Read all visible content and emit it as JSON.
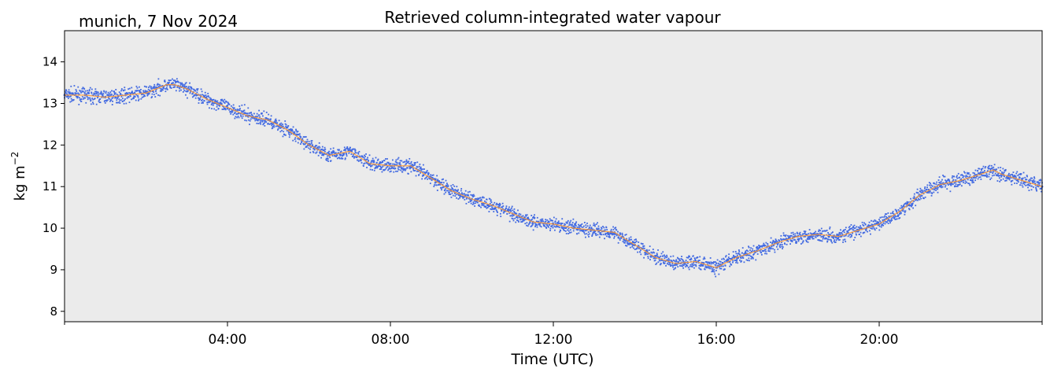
{
  "header": {
    "location_date": "munich, 7 Nov 2024",
    "title": "Retrieved column-integrated water vapour"
  },
  "chart_data": {
    "type": "scatter",
    "title": "Retrieved column-integrated water vapour",
    "xlabel": "Time (UTC)",
    "ylabel_main": "kg m",
    "ylabel_sup": "−2",
    "x_unit": "hours UTC",
    "xlim": [
      0,
      24
    ],
    "ylim": [
      7.75,
      14.75
    ],
    "x_ticks": [
      {
        "value": 4,
        "label": "04:00"
      },
      {
        "value": 8,
        "label": "08:00"
      },
      {
        "value": 12,
        "label": "12:00"
      },
      {
        "value": 16,
        "label": "16:00"
      },
      {
        "value": 20,
        "label": "20:00"
      }
    ],
    "x_minor_ticks": [
      0,
      24
    ],
    "y_ticks": [
      {
        "value": 8,
        "label": "8"
      },
      {
        "value": 9,
        "label": "9"
      },
      {
        "value": 10,
        "label": "10"
      },
      {
        "value": 11,
        "label": "11"
      },
      {
        "value": 12,
        "label": "12"
      },
      {
        "value": 13,
        "label": "13"
      },
      {
        "value": 14,
        "label": "14"
      }
    ],
    "grid": false,
    "background": "#ebebeb",
    "series": [
      {
        "kind": "scatter",
        "color": "#4169e1",
        "x": [
          0.0,
          0.5,
          1.0,
          1.5,
          2.0,
          2.5,
          2.7,
          3.0,
          3.5,
          4.0,
          4.5,
          5.0,
          5.5,
          6.0,
          6.5,
          7.0,
          7.5,
          8.0,
          8.5,
          9.0,
          9.5,
          10.0,
          10.5,
          11.0,
          11.5,
          12.0,
          12.5,
          13.0,
          13.5,
          14.0,
          14.5,
          15.0,
          15.5,
          16.0,
          16.5,
          17.0,
          17.5,
          18.0,
          18.5,
          19.0,
          19.5,
          20.0,
          20.5,
          21.0,
          21.5,
          22.0,
          22.5,
          22.8,
          23.0,
          23.5,
          24.0
        ],
        "y": [
          13.2,
          13.2,
          13.15,
          13.2,
          13.25,
          13.45,
          13.45,
          13.35,
          13.1,
          12.9,
          12.7,
          12.6,
          12.35,
          12.0,
          11.75,
          11.85,
          11.55,
          11.5,
          11.5,
          11.2,
          10.9,
          10.7,
          10.55,
          10.35,
          10.15,
          10.1,
          10.0,
          9.95,
          9.9,
          9.6,
          9.3,
          9.15,
          9.2,
          9.05,
          9.3,
          9.45,
          9.65,
          9.8,
          9.85,
          9.8,
          9.95,
          10.1,
          10.4,
          10.8,
          11.05,
          11.15,
          11.3,
          11.4,
          11.3,
          11.15,
          11.0
        ]
      },
      {
        "kind": "line",
        "color": "#ff9a33",
        "x": [
          0.0,
          0.5,
          1.0,
          1.5,
          2.0,
          2.5,
          2.7,
          3.0,
          3.5,
          4.0,
          4.5,
          5.0,
          5.5,
          6.0,
          6.5,
          7.0,
          7.5,
          8.0,
          8.5,
          9.0,
          9.5,
          10.0,
          10.5,
          11.0,
          11.5,
          12.0,
          12.5,
          13.0,
          13.5,
          14.0,
          14.5,
          15.0,
          15.5,
          16.0,
          16.5,
          17.0,
          17.5,
          18.0,
          18.5,
          19.0,
          19.5,
          20.0,
          20.5,
          21.0,
          21.5,
          22.0,
          22.5,
          22.8,
          23.0,
          23.5,
          24.0
        ],
        "y": [
          13.2,
          13.2,
          13.15,
          13.2,
          13.25,
          13.45,
          13.45,
          13.35,
          13.1,
          12.9,
          12.7,
          12.6,
          12.35,
          12.0,
          11.75,
          11.85,
          11.55,
          11.5,
          11.5,
          11.2,
          10.9,
          10.7,
          10.55,
          10.35,
          10.15,
          10.1,
          10.0,
          9.95,
          9.9,
          9.6,
          9.3,
          9.15,
          9.2,
          9.05,
          9.3,
          9.45,
          9.65,
          9.8,
          9.85,
          9.8,
          9.95,
          10.1,
          10.4,
          10.8,
          11.05,
          11.15,
          11.3,
          11.4,
          11.3,
          11.15,
          11.0
        ]
      }
    ]
  }
}
